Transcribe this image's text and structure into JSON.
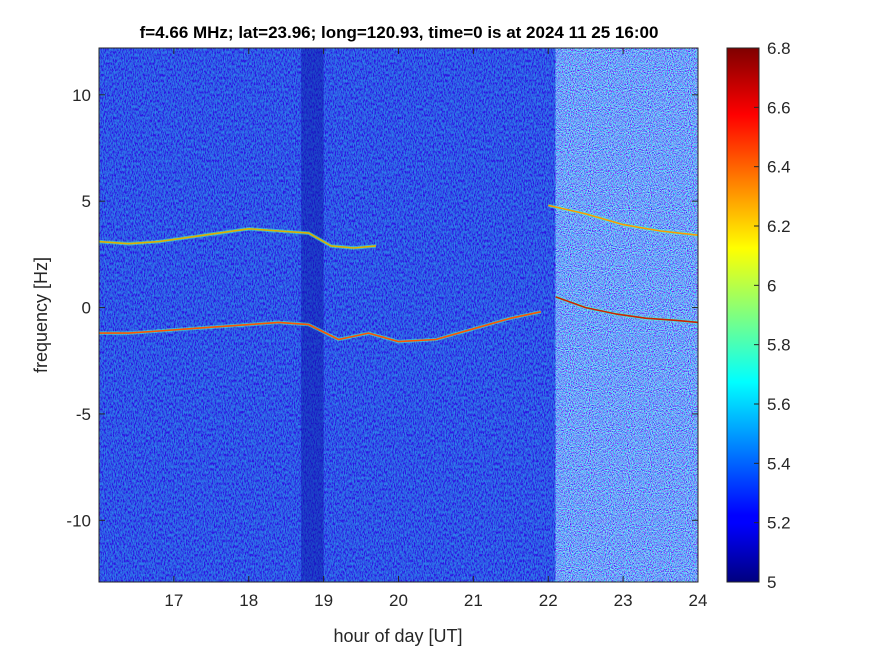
{
  "chart_data": {
    "type": "heatmap",
    "title": "f=4.66 MHz;  lat=23.96; long=120.93, time=0 is at 2024 11 25 16:00",
    "xlabel": "hour of day [UT]",
    "ylabel": "frequency [Hz]",
    "xlim": [
      16.0,
      24.0
    ],
    "ylim": [
      -12.9,
      12.2
    ],
    "xticks": [
      17,
      18,
      19,
      20,
      21,
      22,
      23,
      24
    ],
    "yticks": [
      10,
      5,
      0,
      -5,
      -10
    ],
    "colorbar": {
      "colormap": "jet",
      "range": [
        5,
        6.8
      ],
      "ticks": [
        "6.8",
        "6.6",
        "6.4",
        "6.2",
        "6",
        "5.8",
        "5.6",
        "5.4",
        "5.2",
        "5"
      ]
    },
    "series": [
      {
        "x": [
          16.0,
          16.4,
          16.8,
          17.2,
          17.6,
          18.0,
          18.4,
          18.8,
          19.1,
          19.4,
          19.7
        ],
        "y": [
          3.1,
          3.0,
          3.1,
          3.3,
          3.5,
          3.7,
          3.6,
          3.5,
          2.9,
          2.8,
          2.9
        ]
      },
      {
        "x": [
          16.0,
          16.4,
          16.8,
          17.2,
          17.6,
          18.0,
          18.4,
          18.8,
          19.2,
          19.6,
          20.0,
          20.5,
          21.0,
          21.5,
          21.9
        ],
        "y": [
          -1.2,
          -1.2,
          -1.1,
          -1.0,
          -0.9,
          -0.8,
          -0.7,
          -0.8,
          -1.5,
          -1.2,
          -1.6,
          -1.5,
          -1.0,
          -0.5,
          -0.2
        ]
      },
      {
        "x": [
          22.1,
          22.5,
          22.9,
          23.3,
          23.7,
          24.0
        ],
        "y": [
          0.5,
          0.0,
          -0.3,
          -0.5,
          -0.6,
          -0.7
        ]
      },
      {
        "x": [
          22.0,
          22.5,
          23.0,
          23.5,
          24.0
        ],
        "y": [
          4.8,
          4.4,
          3.9,
          3.6,
          3.4
        ]
      }
    ],
    "background_regions": [
      {
        "x": [
          16.0,
          22.1
        ],
        "level": 5.3
      },
      {
        "x": [
          22.1,
          24.0
        ],
        "level": 5.6
      }
    ]
  }
}
